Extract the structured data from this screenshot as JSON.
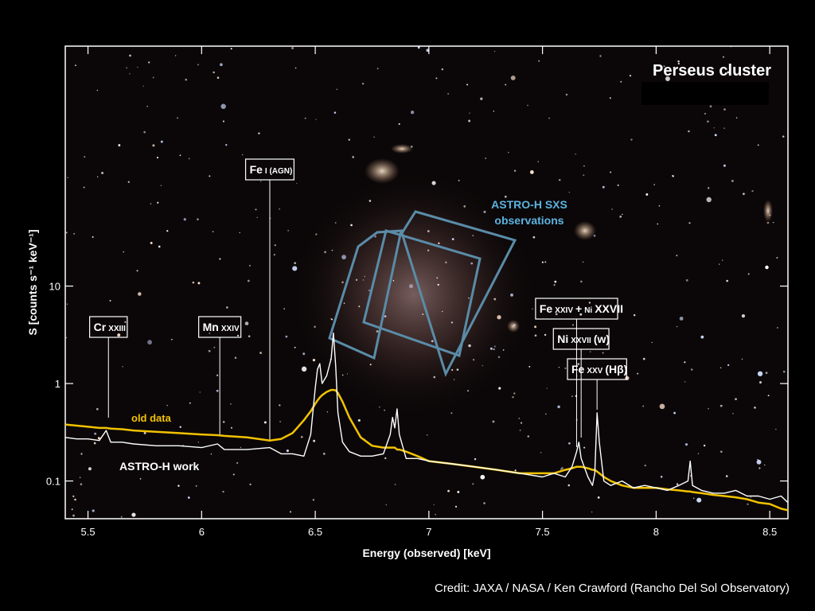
{
  "chart_data": {
    "type": "line",
    "title": "Perseus cluster",
    "x_label": "Energy (observed) [keV]",
    "y_label": "S [counts s⁻¹ keV⁻¹]",
    "credit": "Credit: JAXA / NASA / Ken Crawford (Rancho Del Sol Observatory)",
    "region_label": [
      "ASTRO-H SXS",
      "observations"
    ],
    "log_y": true,
    "xlim": [
      5.4,
      8.58
    ],
    "ylim": [
      0.041,
      2900
    ],
    "xticks": [
      5.5,
      6,
      6.5,
      7,
      7.5,
      8,
      8.5
    ],
    "yticks": [
      0.1,
      1,
      10
    ],
    "x": [
      5.4,
      5.45,
      5.5,
      5.55,
      5.58,
      5.6,
      5.65,
      5.7,
      5.8,
      5.9,
      6.0,
      6.07,
      6.1,
      6.2,
      6.3,
      6.35,
      6.4,
      6.45,
      6.48,
      6.5,
      6.51,
      6.52,
      6.53,
      6.55,
      6.57,
      6.58,
      6.59,
      6.6,
      6.62,
      6.65,
      6.7,
      6.75,
      6.8,
      6.83,
      6.84,
      6.85,
      6.86,
      6.87,
      6.9,
      6.95,
      7.0,
      7.1,
      7.2,
      7.3,
      7.4,
      7.5,
      7.55,
      7.6,
      7.63,
      7.65,
      7.66,
      7.67,
      7.7,
      7.72,
      7.73,
      7.74,
      7.75,
      7.77,
      7.8,
      7.85,
      7.9,
      7.95,
      8.0,
      8.05,
      8.1,
      8.14,
      8.15,
      8.16,
      8.2,
      8.25,
      8.3,
      8.35,
      8.4,
      8.45,
      8.5,
      8.55,
      8.58
    ],
    "series": [
      {
        "name": "old data",
        "color": "#f2c200",
        "values": [
          0.38,
          0.37,
          0.36,
          0.35,
          0.35,
          0.345,
          0.34,
          0.33,
          0.32,
          0.31,
          0.3,
          0.295,
          0.29,
          0.28,
          0.26,
          0.27,
          0.31,
          0.42,
          0.52,
          0.62,
          0.67,
          0.72,
          0.76,
          0.82,
          0.86,
          0.86,
          0.85,
          0.8,
          0.65,
          0.45,
          0.28,
          0.23,
          0.22,
          0.22,
          0.22,
          0.22,
          0.21,
          0.21,
          0.2,
          0.18,
          0.16,
          0.15,
          0.14,
          0.13,
          0.12,
          0.12,
          0.12,
          0.13,
          0.135,
          0.14,
          0.14,
          0.14,
          0.135,
          0.13,
          0.13,
          0.125,
          0.12,
          0.11,
          0.1,
          0.09,
          0.085,
          0.085,
          0.085,
          0.082,
          0.08,
          0.078,
          0.078,
          0.077,
          0.075,
          0.072,
          0.07,
          0.068,
          0.065,
          0.06,
          0.058,
          0.052,
          0.05
        ]
      },
      {
        "name": "ASTRO-H work",
        "color": "#ffffff",
        "values": [
          0.28,
          0.27,
          0.27,
          0.26,
          0.33,
          0.25,
          0.25,
          0.24,
          0.23,
          0.23,
          0.22,
          0.24,
          0.21,
          0.21,
          0.22,
          0.19,
          0.19,
          0.18,
          0.3,
          0.9,
          1.4,
          1.6,
          1.0,
          1.2,
          1.8,
          3.3,
          1.5,
          0.5,
          0.25,
          0.2,
          0.18,
          0.18,
          0.19,
          0.3,
          0.45,
          0.35,
          0.55,
          0.3,
          0.17,
          0.17,
          0.16,
          0.15,
          0.14,
          0.13,
          0.12,
          0.11,
          0.12,
          0.11,
          0.14,
          0.2,
          0.25,
          0.17,
          0.11,
          0.09,
          0.12,
          0.5,
          0.25,
          0.1,
          0.09,
          0.1,
          0.085,
          0.09,
          0.085,
          0.08,
          0.09,
          0.1,
          0.16,
          0.09,
          0.08,
          0.075,
          0.075,
          0.08,
          0.07,
          0.07,
          0.065,
          0.07,
          0.06
        ]
      }
    ],
    "annotations": [
      {
        "parts": [
          "Cr",
          "XXIII"
        ],
        "x": 5.59
      },
      {
        "parts": [
          "Mn",
          "XXIV"
        ],
        "x": 6.08
      },
      {
        "parts": [
          "Fe",
          "I (AGN)"
        ],
        "x": 6.3
      },
      {
        "parts": [
          "Fe",
          "XXIV",
          "+",
          "Ni",
          "XXVII"
        ],
        "x": 7.65
      },
      {
        "parts": [
          "Ni",
          "XXVII",
          "(w)"
        ],
        "x": 7.67
      },
      {
        "parts": [
          "Fe",
          "XXV",
          "(Hβ)"
        ],
        "x": 7.74
      }
    ]
  }
}
